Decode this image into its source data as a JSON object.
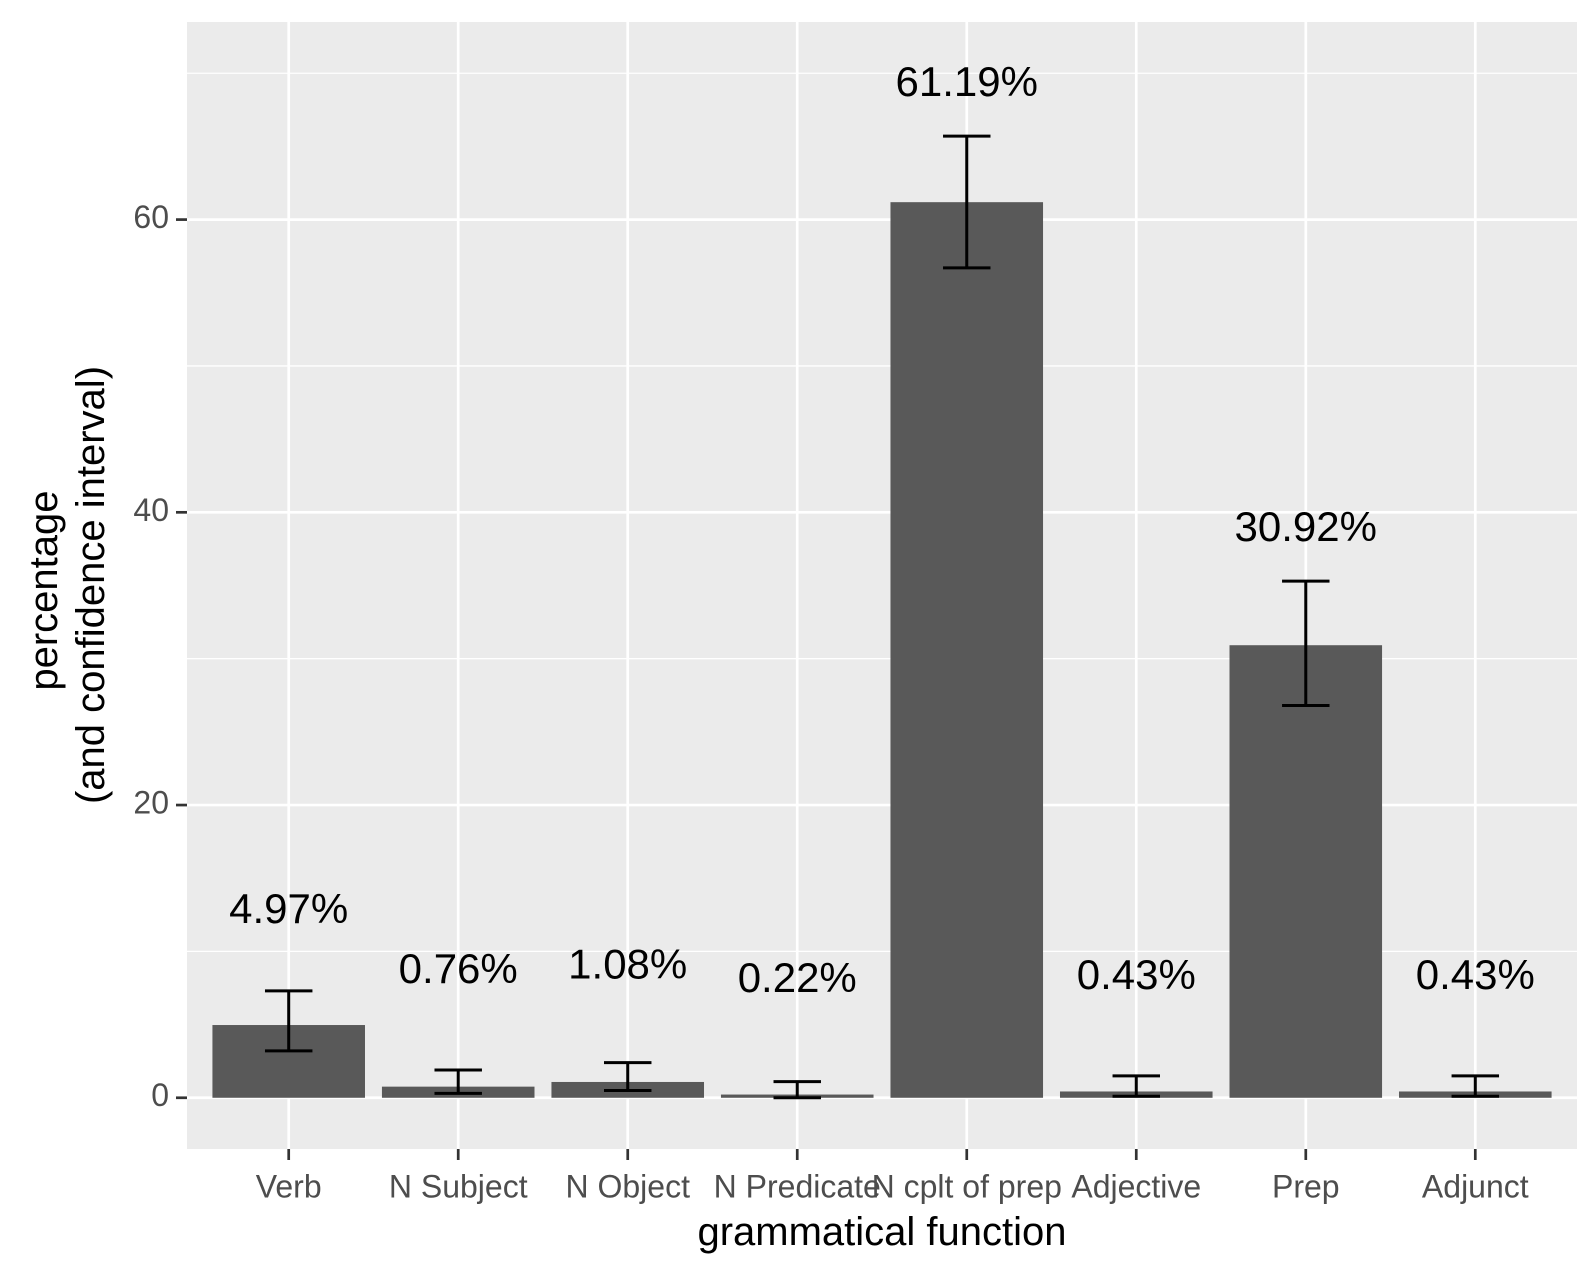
{
  "chart_data": {
    "type": "bar",
    "title": "",
    "xlabel": "grammatical function",
    "ylabel_lines": [
      "percentage",
      "(and confidence interval)"
    ],
    "categories": [
      "Verb",
      "N Subject",
      "N Object",
      "N Predicate",
      "N cplt of prep",
      "Adjective",
      "Prep",
      "Adjunct"
    ],
    "values": [
      4.97,
      0.76,
      1.08,
      0.22,
      61.19,
      0.43,
      30.92,
      0.43
    ],
    "value_labels": [
      "4.97%",
      "0.76%",
      "1.08%",
      "0.22%",
      "61.19%",
      "0.43%",
      "30.92%",
      "0.43%"
    ],
    "ci_lower": [
      3.2,
      0.3,
      0.5,
      0.0,
      56.7,
      0.1,
      26.8,
      0.1
    ],
    "ci_upper": [
      7.3,
      1.9,
      2.4,
      1.1,
      65.7,
      1.5,
      35.3,
      1.5
    ],
    "label_y": [
      12.7,
      8.6,
      8.9,
      8.0,
      69.2,
      8.2,
      38.8,
      8.2
    ],
    "ylim": [
      -3.5,
      73.5
    ],
    "yticks": [
      0,
      20,
      40,
      60
    ],
    "grid": true,
    "legend": "none",
    "colors": {
      "panel": "#ebebeb",
      "grid": "#ffffff",
      "bar": "#595959",
      "errorbar": "#000000",
      "tick": "#333333"
    }
  }
}
